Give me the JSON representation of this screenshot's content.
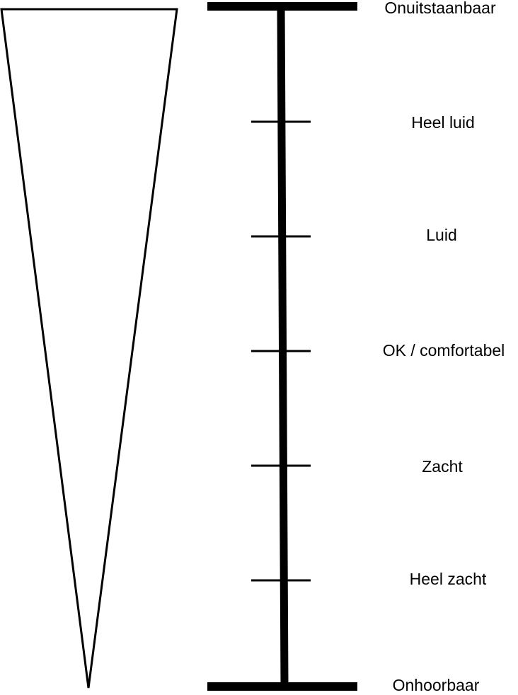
{
  "scale": {
    "levels": [
      {
        "label": "Onuitstaanbaar",
        "kind": "end"
      },
      {
        "label": "Heel luid",
        "kind": "tick"
      },
      {
        "label": "Luid",
        "kind": "tick"
      },
      {
        "label": "OK / comfortabel",
        "kind": "tick"
      },
      {
        "label": "Zacht",
        "kind": "tick"
      },
      {
        "label": "Heel zacht",
        "kind": "tick"
      },
      {
        "label": "Onhoorbaar",
        "kind": "end"
      }
    ]
  },
  "colors": {
    "stroke": "#000000",
    "fill": "#ffffff"
  }
}
